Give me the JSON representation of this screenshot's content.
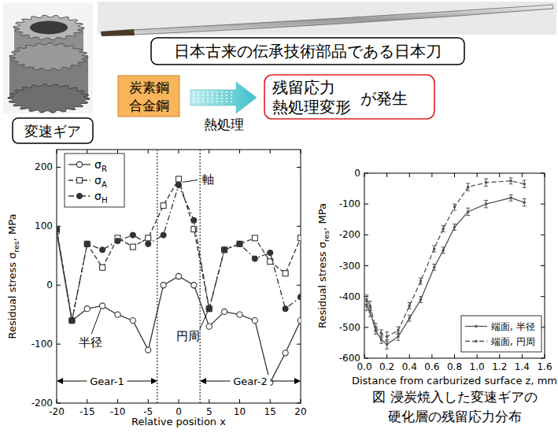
{
  "chart_data": [
    {
      "type": "line",
      "x_label": "Relative position x",
      "y_label": "Residual stress σres, MPa",
      "xlim": [
        -20,
        20
      ],
      "ylim": [
        -200,
        230
      ],
      "xticks": [
        -20,
        -15,
        -10,
        -5,
        0,
        5,
        10,
        15,
        20
      ],
      "yticks": [
        -200,
        -100,
        0,
        100,
        200
      ],
      "x": [
        -20,
        -17.5,
        -15,
        -12.5,
        -10,
        -7.5,
        -5,
        -2.5,
        0,
        2.5,
        5,
        7.5,
        10,
        12.5,
        15,
        17.5,
        20
      ],
      "series": [
        {
          "name": "σR",
          "color": "#333333",
          "marker": "circle_open",
          "line_style": "solid",
          "values": [
            90,
            -60,
            -40,
            -35,
            -50,
            -60,
            -110,
            0,
            15,
            0,
            -70,
            -45,
            -50,
            -60,
            -165,
            -115,
            -60
          ]
        },
        {
          "name": "σA",
          "color": "#333333",
          "marker": "square_open",
          "line_style": "dashed",
          "values": [
            95,
            -60,
            70,
            30,
            80,
            65,
            80,
            135,
            180,
            95,
            -40,
            60,
            70,
            80,
            40,
            20,
            80
          ]
        },
        {
          "name": "σH",
          "color": "#333333",
          "marker": "circle_filled",
          "line_style": "dashdot",
          "values": [
            95,
            -60,
            70,
            60,
            75,
            85,
            70,
            85,
            170,
            110,
            -40,
            60,
            70,
            45,
            55,
            -40,
            -20
          ]
        }
      ],
      "legend": "upper left",
      "regions": [
        {
          "label": "Gear-1",
          "from": -20,
          "to": -3.5
        },
        {
          "label": "Gear-2",
          "from": 3.5,
          "to": 20
        }
      ],
      "annotations": [
        "軸",
        "円周",
        "半径"
      ]
    },
    {
      "type": "line",
      "x_label": "Distance from carburized surface z, mm",
      "y_label": "Residual stress σres, MPa",
      "xlim": [
        0,
        1.6
      ],
      "ylim": [
        -600,
        0
      ],
      "xticks": [
        {
          "value": 0,
          "label": "0.0"
        },
        0.2,
        0.4,
        0.6,
        0.8,
        {
          "value": 1,
          "label": "1.0"
        },
        1.2,
        1.4,
        1.6
      ],
      "yticks": [
        -600,
        -500,
        -400,
        -300,
        -200,
        -100,
        0
      ],
      "x": [
        0.02,
        0.05,
        0.1,
        0.15,
        0.2,
        0.3,
        0.4,
        0.5,
        0.62,
        0.7,
        0.8,
        0.92,
        1.08,
        1.3,
        1.42
      ],
      "series": [
        {
          "name": "端面, 半径",
          "color": "#555555",
          "marker": "dot",
          "line_style": "solid",
          "values": [
            -430,
            -450,
            -510,
            -540,
            -555,
            -530,
            -470,
            -410,
            -305,
            -250,
            -175,
            -125,
            -100,
            -80,
            -95
          ],
          "errors": [
            15,
            15,
            12,
            12,
            15,
            12,
            10,
            10,
            10,
            10,
            10,
            12,
            12,
            10,
            12
          ]
        },
        {
          "name": "端面, 円周",
          "color": "#555555",
          "marker": "dot",
          "line_style": "dashed",
          "values": [
            -410,
            -430,
            -500,
            -520,
            -530,
            -510,
            -430,
            -350,
            -245,
            -180,
            -110,
            -45,
            -30,
            -25,
            -35
          ],
          "errors": [
            15,
            15,
            12,
            12,
            15,
            12,
            10,
            10,
            10,
            10,
            10,
            12,
            12,
            10,
            12
          ]
        }
      ],
      "legend": "lower right"
    }
  ],
  "diagram": {
    "sword_caption": "日本古来の伝承技術部品である日本刀",
    "gear_label": "変速ギア",
    "material": [
      "炭素鋼",
      "合金鋼"
    ],
    "process": "熱処理",
    "result": [
      "残留応力",
      "熱処理変形"
    ],
    "result_suffix": "が発生",
    "figure_caption": [
      "図 浸炭焼入した変速ギアの",
      "硬化層の残留応力分布"
    ]
  }
}
